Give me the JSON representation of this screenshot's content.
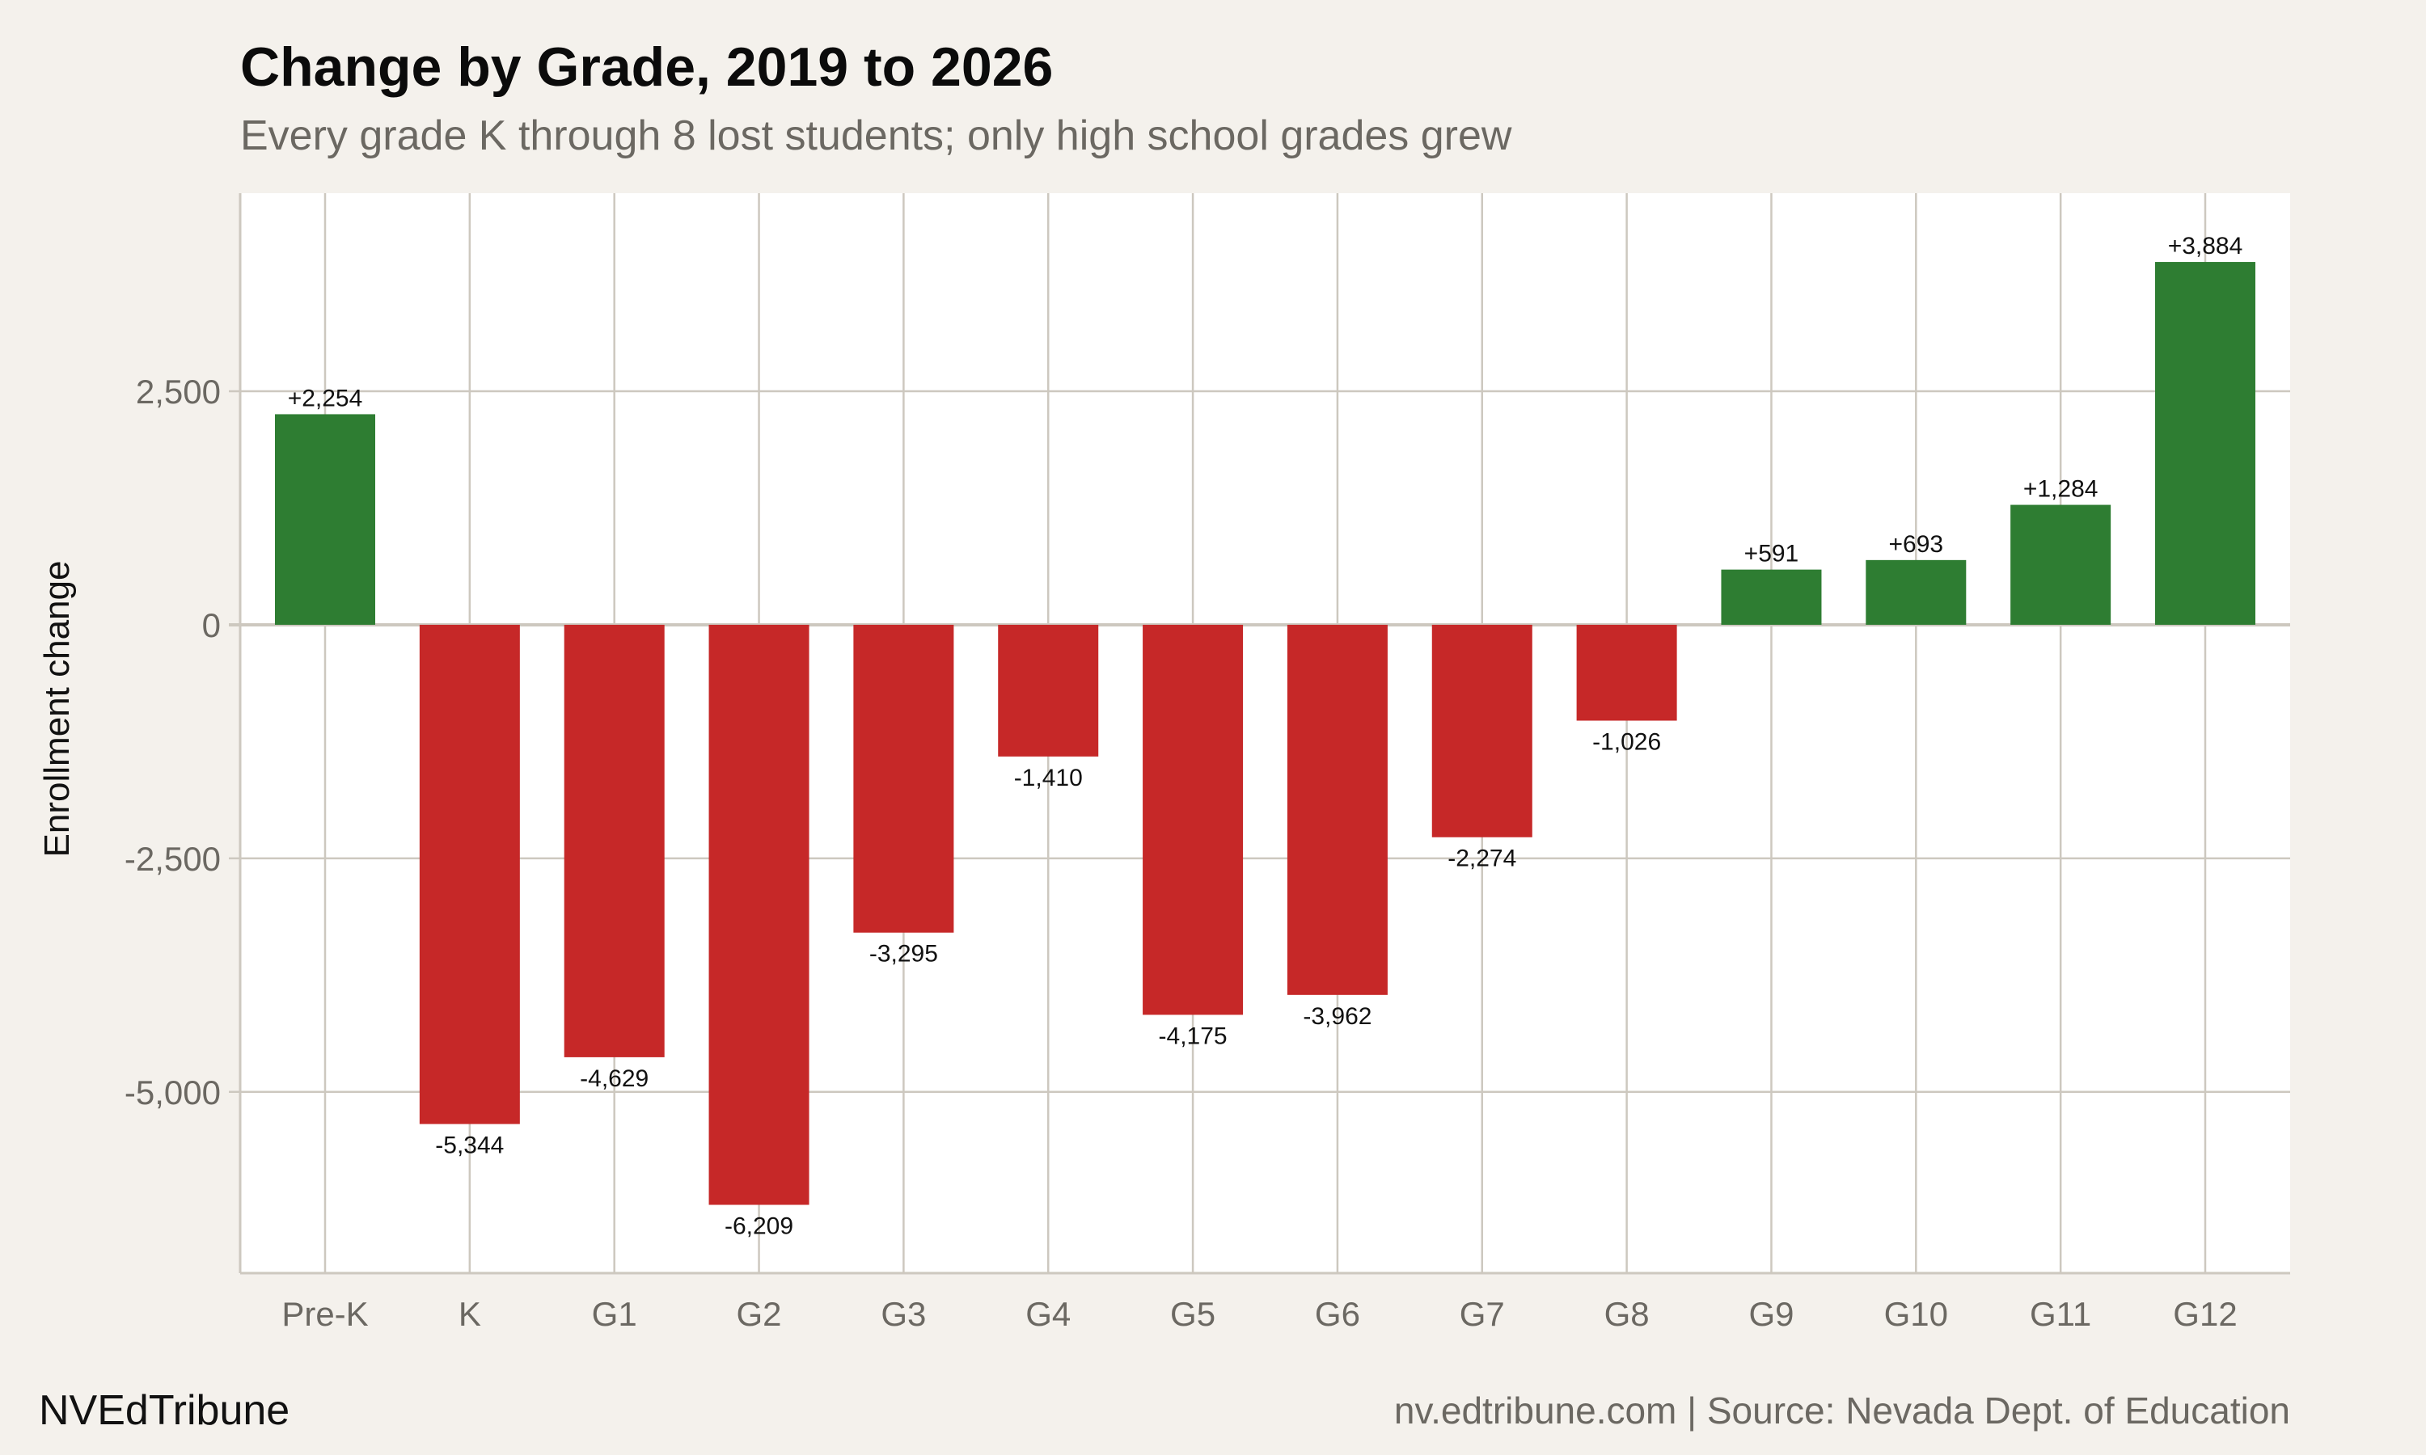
{
  "header": {
    "title": "Change by Grade, 2019 to 2026",
    "subtitle": "Every grade K through 8 lost students; only high school grades grew"
  },
  "footer": {
    "brand": "NVEdTribune",
    "source": "nv.edtribune.com | Source: Nevada Dept. of Education"
  },
  "colors": {
    "positive": "#2e7d32",
    "negative": "#c62828",
    "grid": "#cdc8bf",
    "background": "#f4f1ec",
    "panel": "#ffffff"
  },
  "chart_data": {
    "type": "bar",
    "title": "Change by Grade, 2019 to 2026",
    "subtitle": "Every grade K through 8 lost students; only high school grades grew",
    "xlabel": "",
    "ylabel": "Enrollment change",
    "categories": [
      "Pre-K",
      "K",
      "G1",
      "G2",
      "G3",
      "G4",
      "G5",
      "G6",
      "G7",
      "G8",
      "G9",
      "G10",
      "G11",
      "G12"
    ],
    "values": [
      2254,
      -5344,
      -4629,
      -6209,
      -3295,
      -1410,
      -4175,
      -3962,
      -2274,
      -1026,
      591,
      693,
      1284,
      3884
    ],
    "labels": [
      "+2,254",
      "-5,344",
      "-4,629",
      "-6,209",
      "-3,295",
      "-1,410",
      "-4,175",
      "-3,962",
      "-2,274",
      "-1,026",
      "+591",
      "+693",
      "+1,284",
      "+3,884"
    ],
    "yticks": [
      2500,
      0,
      -2500,
      -5000
    ],
    "ytick_labels": [
      "2,500",
      "0",
      "-2,500",
      "-5,000"
    ],
    "ylim": [
      -6940,
      4620
    ],
    "grid": true
  }
}
